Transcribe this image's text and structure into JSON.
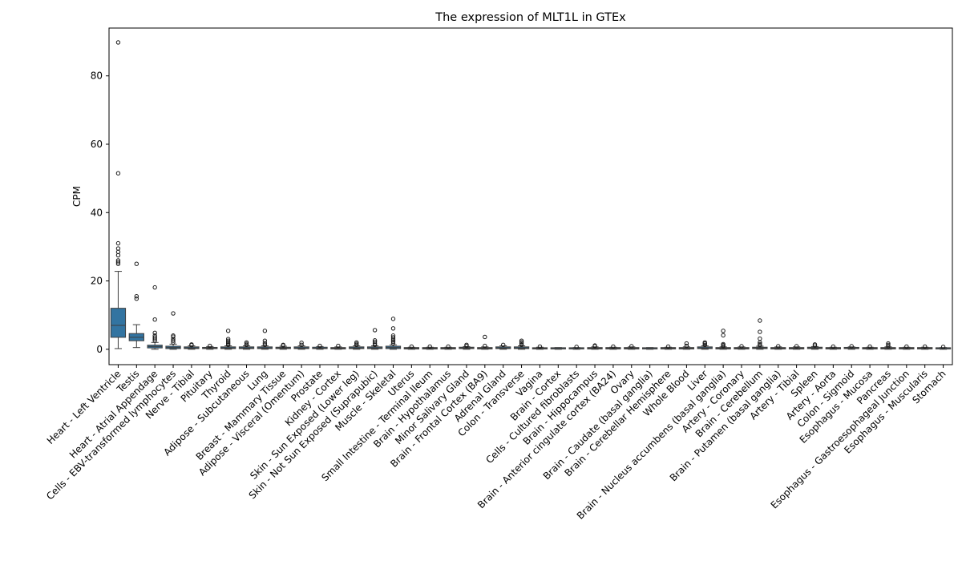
{
  "chart_data": {
    "type": "box",
    "title": "The expression of MLT1L in GTEx",
    "xlabel": "",
    "ylabel": "CPM",
    "ylim": [
      -4.5,
      94
    ],
    "yticks": [
      0,
      20,
      40,
      60,
      80
    ],
    "grid": false,
    "box_color": "#3274a1",
    "categories": [
      "Heart - Left Ventricle",
      "Testis",
      "Heart - Atrial Appendage",
      "Cells - EBV-transformed lymphocytes",
      "Nerve - Tibial",
      "Pituitary",
      "Thyroid",
      "Adipose - Subcutaneous",
      "Lung",
      "Breast - Mammary Tissue",
      "Adipose - Visceral (Omentum)",
      "Prostate",
      "Kidney - Cortex",
      "Skin - Sun Exposed (Lower leg)",
      "Skin - Not Sun Exposed (Suprapubic)",
      "Muscle - Skeletal",
      "Uterus",
      "Small Intestine - Terminal Ileum",
      "Brain - Hypothalamus",
      "Minor Salivary Gland",
      "Brain - Frontal Cortex (BA9)",
      "Adrenal Gland",
      "Colon - Transverse",
      "Vagina",
      "Brain - Cortex",
      "Cells - Cultured fibroblasts",
      "Brain - Hippocampus",
      "Brain - Anterior cingulate cortex (BA24)",
      "Ovary",
      "Brain - Caudate (basal ganglia)",
      "Brain - Cerebellar Hemisphere",
      "Whole Blood",
      "Liver",
      "Brain - Nucleus accumbens (basal ganglia)",
      "Artery - Coronary",
      "Brain - Cerebellum",
      "Brain - Putamen (basal ganglia)",
      "Artery - Tibial",
      "Spleen",
      "Artery - Aorta",
      "Colon - Sigmoid",
      "Esophagus - Mucosa",
      "Pancreas",
      "Esophagus - Gastroesophageal Junction",
      "Esophagus - Muscularis",
      "Stomach"
    ],
    "boxes": [
      {
        "q1": 3.5,
        "median": 7.0,
        "q3": 12.0,
        "low": 0.2,
        "high": 22.8,
        "outliers": [
          25.0,
          25.5,
          26.0,
          27.5,
          28.5,
          29.5,
          31.0,
          51.5,
          89.8
        ]
      },
      {
        "q1": 2.5,
        "median": 3.5,
        "q3": 4.6,
        "low": 0.5,
        "high": 7.2,
        "outliers": [
          14.8,
          15.5,
          25.0
        ]
      },
      {
        "q1": 0.4,
        "median": 0.8,
        "q3": 1.2,
        "low": 0.0,
        "high": 2.0,
        "outliers": [
          2.5,
          3.0,
          3.5,
          4.0,
          4.8,
          8.7,
          18.1
        ]
      },
      {
        "q1": 0.2,
        "median": 0.5,
        "q3": 0.9,
        "low": 0.0,
        "high": 1.5,
        "outliers": [
          2.0,
          2.5,
          3.0,
          3.7,
          4.0,
          10.5
        ]
      },
      {
        "q1": 0.2,
        "median": 0.4,
        "q3": 0.7,
        "low": 0.0,
        "high": 1.0,
        "outliers": [
          1.2,
          1.4
        ]
      },
      {
        "q1": 0.2,
        "median": 0.3,
        "q3": 0.5,
        "low": 0.0,
        "high": 0.8,
        "outliers": [
          1.0
        ]
      },
      {
        "q1": 0.2,
        "median": 0.4,
        "q3": 0.7,
        "low": 0.0,
        "high": 1.0,
        "outliers": [
          1.3,
          1.7,
          2.1,
          2.5,
          3.0,
          5.4
        ]
      },
      {
        "q1": 0.2,
        "median": 0.4,
        "q3": 0.7,
        "low": 0.0,
        "high": 1.0,
        "outliers": [
          1.3,
          1.6,
          2.0
        ]
      },
      {
        "q1": 0.2,
        "median": 0.4,
        "q3": 0.7,
        "low": 0.0,
        "high": 1.0,
        "outliers": [
          1.3,
          1.8,
          2.5,
          5.4
        ]
      },
      {
        "q1": 0.2,
        "median": 0.4,
        "q3": 0.6,
        "low": 0.0,
        "high": 0.9,
        "outliers": [
          1.1,
          1.3
        ]
      },
      {
        "q1": 0.2,
        "median": 0.4,
        "q3": 0.7,
        "low": 0.0,
        "high": 1.0,
        "outliers": [
          1.3,
          1.9
        ]
      },
      {
        "q1": 0.2,
        "median": 0.3,
        "q3": 0.6,
        "low": 0.0,
        "high": 0.8,
        "outliers": [
          1.0
        ]
      },
      {
        "q1": 0.1,
        "median": 0.3,
        "q3": 0.5,
        "low": 0.0,
        "high": 0.7,
        "outliers": [
          1.0
        ]
      },
      {
        "q1": 0.2,
        "median": 0.4,
        "q3": 0.7,
        "low": 0.0,
        "high": 1.0,
        "outliers": [
          1.3,
          1.6,
          2.0
        ]
      },
      {
        "q1": 0.2,
        "median": 0.4,
        "q3": 0.7,
        "low": 0.0,
        "high": 1.0,
        "outliers": [
          1.3,
          1.7,
          2.2,
          2.6,
          5.6
        ]
      },
      {
        "q1": 0.2,
        "median": 0.5,
        "q3": 0.9,
        "low": 0.0,
        "high": 1.3,
        "outliers": [
          1.7,
          2.2,
          2.6,
          3.0,
          3.5,
          4.0,
          6.1,
          8.9
        ]
      },
      {
        "q1": 0.1,
        "median": 0.3,
        "q3": 0.5,
        "low": 0.0,
        "high": 0.6,
        "outliers": [
          0.8
        ]
      },
      {
        "q1": 0.1,
        "median": 0.3,
        "q3": 0.5,
        "low": 0.0,
        "high": 0.6,
        "outliers": [
          0.8
        ]
      },
      {
        "q1": 0.1,
        "median": 0.3,
        "q3": 0.5,
        "low": 0.0,
        "high": 0.6,
        "outliers": [
          0.8
        ]
      },
      {
        "q1": 0.2,
        "median": 0.4,
        "q3": 0.6,
        "low": 0.0,
        "high": 0.8,
        "outliers": [
          1.0,
          1.3
        ]
      },
      {
        "q1": 0.1,
        "median": 0.3,
        "q3": 0.5,
        "low": 0.0,
        "high": 0.7,
        "outliers": [
          1.0,
          3.6
        ]
      },
      {
        "q1": 0.2,
        "median": 0.4,
        "q3": 0.7,
        "low": 0.0,
        "high": 1.0,
        "outliers": [
          1.3
        ]
      },
      {
        "q1": 0.2,
        "median": 0.4,
        "q3": 0.7,
        "low": 0.0,
        "high": 1.0,
        "outliers": [
          1.3,
          1.7,
          2.1,
          2.5
        ]
      },
      {
        "q1": 0.1,
        "median": 0.3,
        "q3": 0.4,
        "low": 0.0,
        "high": 0.6,
        "outliers": [
          0.8
        ]
      },
      {
        "q1": 0.1,
        "median": 0.2,
        "q3": 0.4,
        "low": 0.0,
        "high": 0.5,
        "outliers": []
      },
      {
        "q1": 0.1,
        "median": 0.2,
        "q3": 0.4,
        "low": 0.0,
        "high": 0.5,
        "outliers": [
          0.7
        ]
      },
      {
        "q1": 0.1,
        "median": 0.3,
        "q3": 0.5,
        "low": 0.0,
        "high": 0.7,
        "outliers": [
          0.9,
          1.1
        ]
      },
      {
        "q1": 0.1,
        "median": 0.3,
        "q3": 0.5,
        "low": 0.0,
        "high": 0.6,
        "outliers": [
          0.8
        ]
      },
      {
        "q1": 0.1,
        "median": 0.3,
        "q3": 0.5,
        "low": 0.0,
        "high": 0.7,
        "outliers": [
          0.9
        ]
      },
      {
        "q1": 0.1,
        "median": 0.2,
        "q3": 0.4,
        "low": 0.0,
        "high": 0.5,
        "outliers": []
      },
      {
        "q1": 0.1,
        "median": 0.3,
        "q3": 0.5,
        "low": 0.0,
        "high": 0.6,
        "outliers": [
          0.8
        ]
      },
      {
        "q1": 0.1,
        "median": 0.3,
        "q3": 0.5,
        "low": 0.0,
        "high": 0.7,
        "outliers": [
          1.0,
          1.7
        ]
      },
      {
        "q1": 0.2,
        "median": 0.4,
        "q3": 0.7,
        "low": 0.0,
        "high": 1.0,
        "outliers": [
          1.3,
          1.7,
          2.0
        ]
      },
      {
        "q1": 0.1,
        "median": 0.3,
        "q3": 0.5,
        "low": 0.0,
        "high": 0.7,
        "outliers": [
          0.9,
          1.2,
          1.5,
          4.1,
          5.4
        ]
      },
      {
        "q1": 0.1,
        "median": 0.3,
        "q3": 0.5,
        "low": 0.0,
        "high": 0.7,
        "outliers": [
          0.9
        ]
      },
      {
        "q1": 0.2,
        "median": 0.4,
        "q3": 0.6,
        "low": 0.0,
        "high": 0.9,
        "outliers": [
          1.2,
          1.5,
          2.0,
          3.1,
          5.1,
          8.4
        ]
      },
      {
        "q1": 0.1,
        "median": 0.3,
        "q3": 0.5,
        "low": 0.0,
        "high": 0.7,
        "outliers": [
          0.9
        ]
      },
      {
        "q1": 0.1,
        "median": 0.3,
        "q3": 0.5,
        "low": 0.0,
        "high": 0.7,
        "outliers": [
          0.9
        ]
      },
      {
        "q1": 0.2,
        "median": 0.4,
        "q3": 0.6,
        "low": 0.0,
        "high": 0.8,
        "outliers": [
          1.1,
          1.4
        ]
      },
      {
        "q1": 0.1,
        "median": 0.3,
        "q3": 0.5,
        "low": 0.0,
        "high": 0.6,
        "outliers": [
          0.8
        ]
      },
      {
        "q1": 0.2,
        "median": 0.3,
        "q3": 0.5,
        "low": 0.0,
        "high": 0.7,
        "outliers": [
          0.9
        ]
      },
      {
        "q1": 0.1,
        "median": 0.3,
        "q3": 0.5,
        "low": 0.0,
        "high": 0.6,
        "outliers": [
          0.8
        ]
      },
      {
        "q1": 0.1,
        "median": 0.3,
        "q3": 0.5,
        "low": 0.0,
        "high": 0.7,
        "outliers": [
          0.9,
          1.3,
          1.7
        ]
      },
      {
        "q1": 0.1,
        "median": 0.3,
        "q3": 0.5,
        "low": 0.0,
        "high": 0.6,
        "outliers": [
          0.8
        ]
      },
      {
        "q1": 0.1,
        "median": 0.3,
        "q3": 0.5,
        "low": 0.0,
        "high": 0.6,
        "outliers": [
          0.8
        ]
      },
      {
        "q1": 0.1,
        "median": 0.2,
        "q3": 0.4,
        "low": 0.0,
        "high": 0.5,
        "outliers": [
          0.7
        ]
      }
    ]
  }
}
